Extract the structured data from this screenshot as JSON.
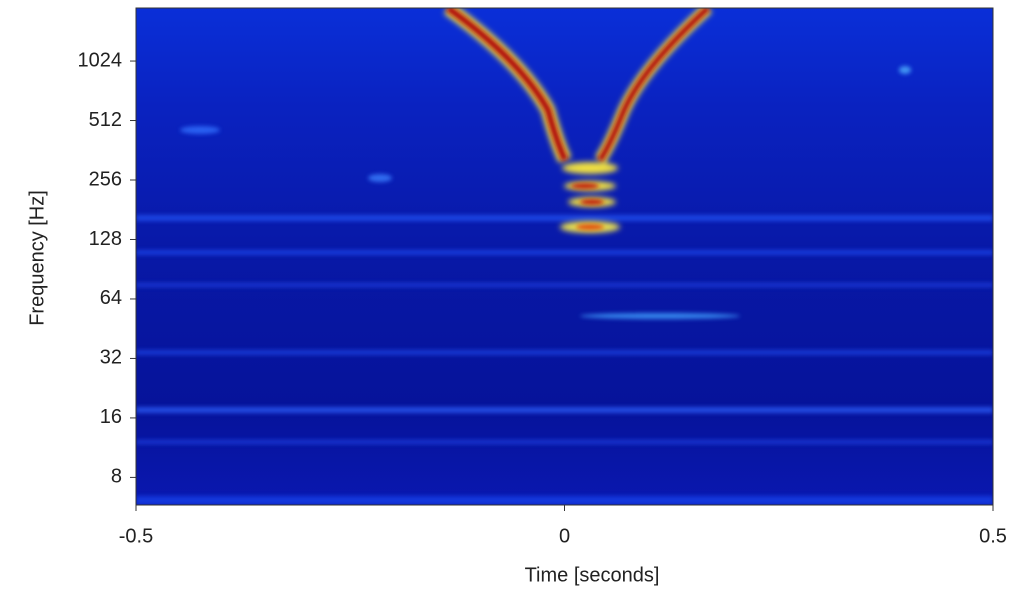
{
  "chart_data": {
    "type": "spectrogram",
    "xlabel": "Time [seconds]",
    "ylabel": "Frequency [Hz]",
    "xlim": [
      -0.5,
      0.5
    ],
    "xticks": [
      -0.5,
      0,
      0.5
    ],
    "ylim": [
      5.8,
      1900
    ],
    "yticks": [
      8,
      16,
      32,
      64,
      128,
      256,
      512,
      1024
    ],
    "yscale": "log"
  }
}
